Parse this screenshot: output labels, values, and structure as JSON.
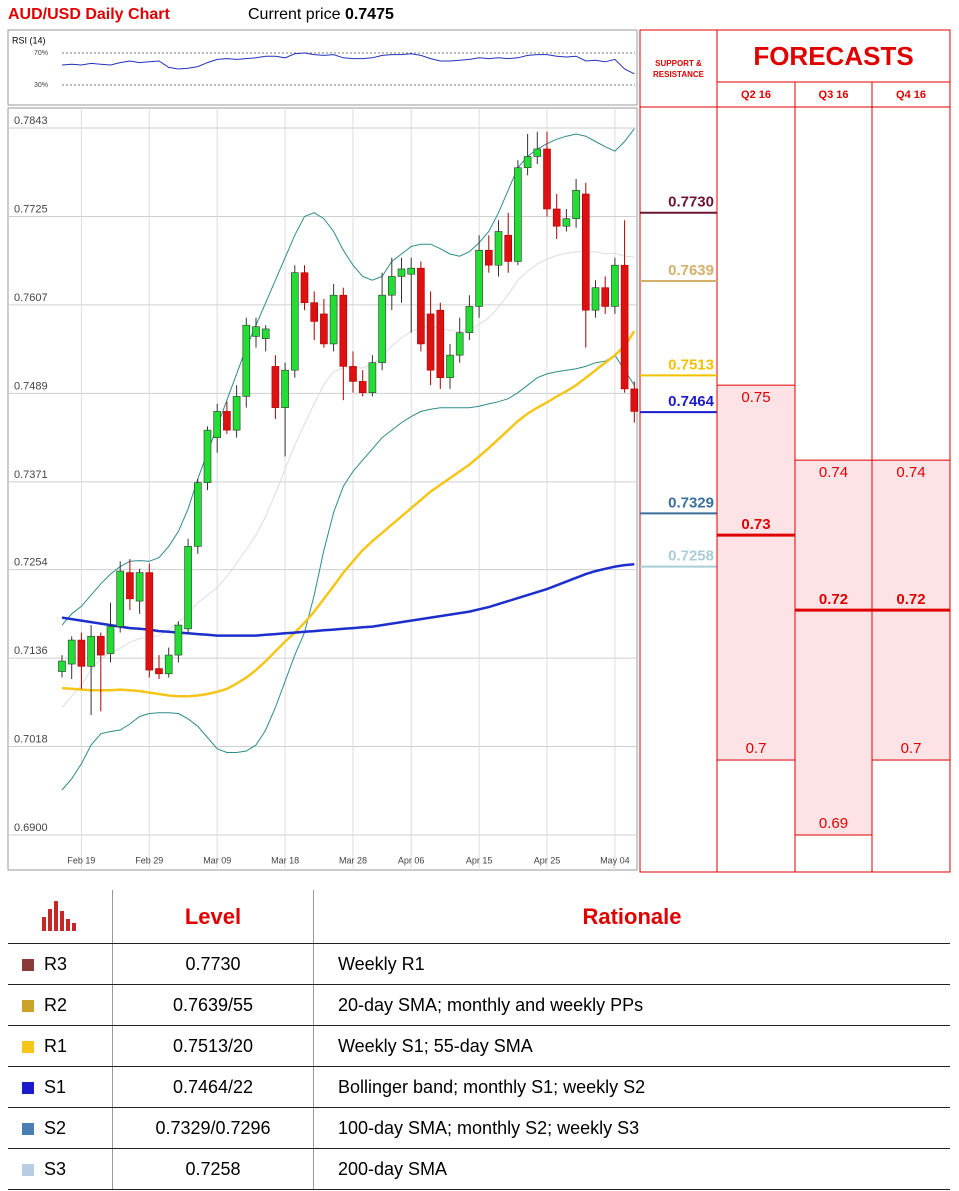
{
  "title": "AUD/USD Daily Chart",
  "current_price": {
    "label": "Current price",
    "value": 0.7475
  },
  "chart_data": [
    {
      "type": "line",
      "title": "RSI (14)",
      "color": "#2233bb",
      "ylim": [
        10,
        90
      ],
      "yticks": [
        {
          "value": 70,
          "label": "70%"
        },
        {
          "value": 30,
          "label": "30%"
        }
      ],
      "values": [
        55,
        56,
        55,
        57,
        56,
        55,
        58,
        60,
        58,
        59,
        60,
        52,
        50,
        51,
        53,
        58,
        62,
        63,
        62,
        63,
        64,
        66,
        66,
        64,
        69,
        70,
        68,
        67,
        68,
        64,
        63,
        63,
        64,
        67,
        68,
        68,
        69,
        67,
        63,
        60,
        60,
        61,
        62,
        64,
        63,
        64,
        63,
        64,
        67,
        68,
        68,
        66,
        65,
        66,
        60,
        61,
        59,
        62,
        50,
        44
      ]
    },
    {
      "type": "candlestick",
      "up_color": "#22dd33",
      "down_color": "#dd1111",
      "grid": true,
      "ylim": [
        0.69,
        0.7843
      ],
      "yticks": [
        {
          "value": 0.69,
          "label": "0.6900"
        },
        {
          "value": 0.7018,
          "label": "0.7018"
        },
        {
          "value": 0.7136,
          "label": "0.7136"
        },
        {
          "value": 0.7254,
          "label": "0.7254"
        },
        {
          "value": 0.7371,
          "label": "0.7371"
        },
        {
          "value": 0.7489,
          "label": "0.7489"
        },
        {
          "value": 0.7607,
          "label": "0.7607"
        },
        {
          "value": 0.7725,
          "label": "0.7725"
        },
        {
          "value": 0.7843,
          "label": "0.7843"
        }
      ],
      "categories": [
        null,
        null,
        "Feb 19",
        null,
        null,
        null,
        null,
        null,
        null,
        "Feb 29",
        null,
        null,
        null,
        null,
        null,
        null,
        "Mar 09",
        null,
        null,
        null,
        null,
        null,
        null,
        "Mar 18",
        null,
        null,
        null,
        null,
        null,
        null,
        "Mar 28",
        null,
        null,
        null,
        null,
        null,
        "Apr 06",
        null,
        null,
        null,
        null,
        null,
        null,
        "Apr 15",
        null,
        null,
        null,
        null,
        null,
        null,
        "Apr 25",
        null,
        null,
        null,
        null,
        null,
        null,
        "May 04",
        null,
        null
      ],
      "open": [
        0.7118,
        0.7128,
        0.716,
        0.7125,
        0.7165,
        0.7142,
        0.7178,
        0.725,
        0.7212,
        0.725,
        0.7122,
        0.7115,
        0.714,
        0.7175,
        0.7285,
        0.737,
        0.743,
        0.7465,
        0.744,
        0.7485,
        0.7565,
        0.7562,
        0.7525,
        0.747,
        0.752,
        0.765,
        0.761,
        0.7595,
        0.7555,
        0.762,
        0.7525,
        0.7505,
        0.749,
        0.753,
        0.762,
        0.7645,
        0.7648,
        0.7656,
        0.7595,
        0.76,
        0.751,
        0.754,
        0.757,
        0.7605,
        0.768,
        0.766,
        0.77,
        0.7665,
        0.779,
        0.7805,
        0.7815,
        0.7735,
        0.7712,
        0.7722,
        0.7755,
        0.76,
        0.763,
        0.7605,
        0.766,
        0.7495
      ],
      "high": [
        0.714,
        0.7165,
        0.717,
        0.718,
        0.717,
        0.721,
        0.7265,
        0.7268,
        0.7255,
        0.7262,
        0.714,
        0.715,
        0.7185,
        0.7295,
        0.7375,
        0.7445,
        0.7475,
        0.7478,
        0.75,
        0.759,
        0.759,
        0.758,
        0.754,
        0.753,
        0.766,
        0.766,
        0.7625,
        0.7615,
        0.7635,
        0.763,
        0.7545,
        0.752,
        0.754,
        0.765,
        0.767,
        0.767,
        0.767,
        0.7665,
        0.7625,
        0.761,
        0.7555,
        0.759,
        0.762,
        0.77,
        0.77,
        0.772,
        0.773,
        0.78,
        0.7835,
        0.7838,
        0.7838,
        0.7755,
        0.7735,
        0.7775,
        0.777,
        0.764,
        0.7645,
        0.767,
        0.772,
        0.7505
      ],
      "low": [
        0.711,
        0.7108,
        0.7095,
        0.706,
        0.7065,
        0.713,
        0.717,
        0.72,
        0.7195,
        0.711,
        0.7108,
        0.711,
        0.713,
        0.717,
        0.7275,
        0.736,
        0.741,
        0.7435,
        0.743,
        0.747,
        0.755,
        0.7545,
        0.7455,
        0.7405,
        0.751,
        0.76,
        0.756,
        0.755,
        0.7545,
        0.748,
        0.749,
        0.7485,
        0.7485,
        0.752,
        0.76,
        0.761,
        0.757,
        0.7545,
        0.75,
        0.7495,
        0.7495,
        0.753,
        0.756,
        0.759,
        0.765,
        0.7645,
        0.765,
        0.766,
        0.778,
        0.7795,
        0.7725,
        0.7695,
        0.7705,
        0.771,
        0.755,
        0.759,
        0.7595,
        0.7595,
        0.749,
        0.745
      ],
      "close": [
        0.7132,
        0.716,
        0.7125,
        0.7165,
        0.714,
        0.7178,
        0.7252,
        0.7215,
        0.725,
        0.712,
        0.7115,
        0.714,
        0.718,
        0.7285,
        0.737,
        0.744,
        0.7465,
        0.744,
        0.7485,
        0.758,
        0.7578,
        0.7575,
        0.747,
        0.752,
        0.765,
        0.761,
        0.7585,
        0.7555,
        0.762,
        0.7525,
        0.7505,
        0.749,
        0.753,
        0.762,
        0.7645,
        0.7655,
        0.7656,
        0.7555,
        0.752,
        0.751,
        0.754,
        0.757,
        0.7605,
        0.768,
        0.766,
        0.7705,
        0.7665,
        0.779,
        0.7805,
        0.7815,
        0.7735,
        0.7712,
        0.7722,
        0.776,
        0.76,
        0.763,
        0.7605,
        0.766,
        0.7495,
        0.7465
      ],
      "series": [
        {
          "color": "#dddddd",
          "values": [
            0.707,
            0.7085,
            0.71,
            0.712,
            0.7135,
            0.7143,
            0.7149,
            0.7157,
            0.7162,
            0.7164,
            0.7166,
            0.7174,
            0.7184,
            0.7195,
            0.721,
            0.722,
            0.723,
            0.7245,
            0.7262,
            0.7281,
            0.73,
            0.7325,
            0.7355,
            0.7388,
            0.742,
            0.7448,
            0.7475,
            0.7501,
            0.7518,
            0.7523,
            0.7523,
            0.7523,
            0.7528,
            0.7538,
            0.7552,
            0.7563,
            0.7572,
            0.7577,
            0.7578,
            0.7576,
            0.7573,
            0.7571,
            0.7574,
            0.7581,
            0.759,
            0.7604,
            0.7621,
            0.764,
            0.7652,
            0.7662,
            0.7668,
            0.7673,
            0.7676,
            0.7678,
            0.7678,
            0.7678,
            0.7675,
            0.7676,
            0.7672,
            0.7671
          ]
        },
        {
          "color": "#2e8b8b",
          "values": [
            0.718,
            0.7195,
            0.7205,
            0.722,
            0.7235,
            0.7248,
            0.7258,
            0.7265,
            0.7266,
            0.7265,
            0.727,
            0.7285,
            0.7305,
            0.7335,
            0.7375,
            0.741,
            0.7445,
            0.748,
            0.7515,
            0.755,
            0.758,
            0.761,
            0.764,
            0.767,
            0.77,
            0.7725,
            0.773,
            0.7722,
            0.7705,
            0.768,
            0.766,
            0.7645,
            0.764,
            0.7645,
            0.7665,
            0.7675,
            0.7685,
            0.7688,
            0.7688,
            0.7682,
            0.7675,
            0.7672,
            0.7678,
            0.769,
            0.7705,
            0.773,
            0.776,
            0.779,
            0.7805,
            0.7815,
            0.7822,
            0.7828,
            0.7832,
            0.7835,
            0.7832,
            0.7825,
            0.7818,
            0.7812,
            0.7825,
            0.7842
          ]
        },
        {
          "color": "#2e8b8b",
          "values": [
            0.696,
            0.6975,
            0.6995,
            0.702,
            0.7035,
            0.7038,
            0.704,
            0.7048,
            0.7058,
            0.7062,
            0.7063,
            0.7063,
            0.7062,
            0.7055,
            0.7045,
            0.703,
            0.7015,
            0.701,
            0.701,
            0.7012,
            0.702,
            0.704,
            0.707,
            0.7105,
            0.714,
            0.717,
            0.722,
            0.728,
            0.733,
            0.7365,
            0.7385,
            0.74,
            0.7415,
            0.743,
            0.744,
            0.745,
            0.7458,
            0.7465,
            0.7468,
            0.747,
            0.747,
            0.747,
            0.747,
            0.7472,
            0.7475,
            0.7478,
            0.7482,
            0.749,
            0.75,
            0.751,
            0.7515,
            0.7518,
            0.752,
            0.7522,
            0.7525,
            0.753,
            0.7532,
            0.754,
            0.752,
            0.75
          ]
        },
        {
          "color": "#f5c518",
          "values": [
            0.7096,
            0.7095,
            0.7094,
            0.7093,
            0.7093,
            0.7093,
            0.7094,
            0.7093,
            0.7092,
            0.709,
            0.7088,
            0.7086,
            0.7085,
            0.7085,
            0.7086,
            0.7088,
            0.7091,
            0.7095,
            0.7102,
            0.711,
            0.712,
            0.7132,
            0.7145,
            0.7158,
            0.717,
            0.7183,
            0.7198,
            0.7215,
            0.7232,
            0.725,
            0.7265,
            0.728,
            0.7292,
            0.7303,
            0.7314,
            0.7325,
            0.7336,
            0.7347,
            0.7358,
            0.7367,
            0.7376,
            0.7385,
            0.7394,
            0.7405,
            0.7416,
            0.7428,
            0.744,
            0.7452,
            0.7462,
            0.747,
            0.7477,
            0.7485,
            0.7492,
            0.75,
            0.751,
            0.752,
            0.753,
            0.754,
            0.7552,
            0.7572
          ]
        },
        {
          "color": "#1c2ecc",
          "values": [
            0.719,
            0.7188,
            0.7186,
            0.7184,
            0.7182,
            0.718,
            0.7178,
            0.7176,
            0.7175,
            0.7174,
            0.7172,
            0.7171,
            0.717,
            0.7169,
            0.7168,
            0.7167,
            0.7166,
            0.7166,
            0.7166,
            0.7166,
            0.7166,
            0.7167,
            0.7168,
            0.7169,
            0.717,
            0.7171,
            0.7172,
            0.7173,
            0.7174,
            0.7175,
            0.7176,
            0.7177,
            0.7178,
            0.718,
            0.7182,
            0.7184,
            0.7186,
            0.7188,
            0.719,
            0.7192,
            0.7194,
            0.7196,
            0.7198,
            0.7201,
            0.7204,
            0.7208,
            0.7212,
            0.7216,
            0.722,
            0.7224,
            0.7228,
            0.7233,
            0.7238,
            0.7243,
            0.7248,
            0.7252,
            0.7255,
            0.7258,
            0.726,
            0.7261
          ]
        }
      ]
    }
  ],
  "support_resistance": {
    "title": "SUPPORT & RESISTANCE",
    "levels": [
      {
        "value": 0.773,
        "label": "0.7730",
        "color": "#6b1530"
      },
      {
        "value": 0.7639,
        "color": "#d4b06a"
      },
      {
        "value": 0.7513,
        "color": "#f2c200"
      },
      {
        "value": 0.7464,
        "color": "#1a1acc"
      },
      {
        "value": 0.7329,
        "color": "#3a6f9a"
      },
      {
        "value": 0.7258,
        "color": "#a9cdd6"
      }
    ]
  },
  "forecasts": {
    "title": "FORECASTS",
    "columns": [
      {
        "name": "Q2 16",
        "high": 0.75,
        "mid": 0.73,
        "low": 0.7
      },
      {
        "name": "Q3 16",
        "high": 0.74,
        "mid": 0.72,
        "low": 0.69
      },
      {
        "name": "Q4 16",
        "high": 0.74,
        "mid": 0.72,
        "low": 0.7
      }
    ]
  },
  "table": {
    "header": [
      "Level",
      "Rationale"
    ],
    "row_colors": [
      "#8b3a3a",
      "#c9a227",
      "#f5c518",
      "#1a1acc",
      "#4a7fb5",
      "#b8cce4"
    ],
    "rows": [
      [
        "R3",
        "0.7730",
        "Weekly R1"
      ],
      [
        "R2",
        "0.7639/55",
        "20-day SMA; monthly and weekly PPs"
      ],
      [
        "R1",
        "0.7513/20",
        "Weekly S1; 55-day SMA"
      ],
      [
        "S1",
        "0.7464/22",
        "Bollinger band; monthly S1; weekly S2"
      ],
      [
        "S2",
        "0.7329/0.7296",
        "100-day SMA; monthly S2; weekly S3"
      ],
      [
        "S3",
        "0.7258",
        "200-day SMA"
      ]
    ]
  }
}
